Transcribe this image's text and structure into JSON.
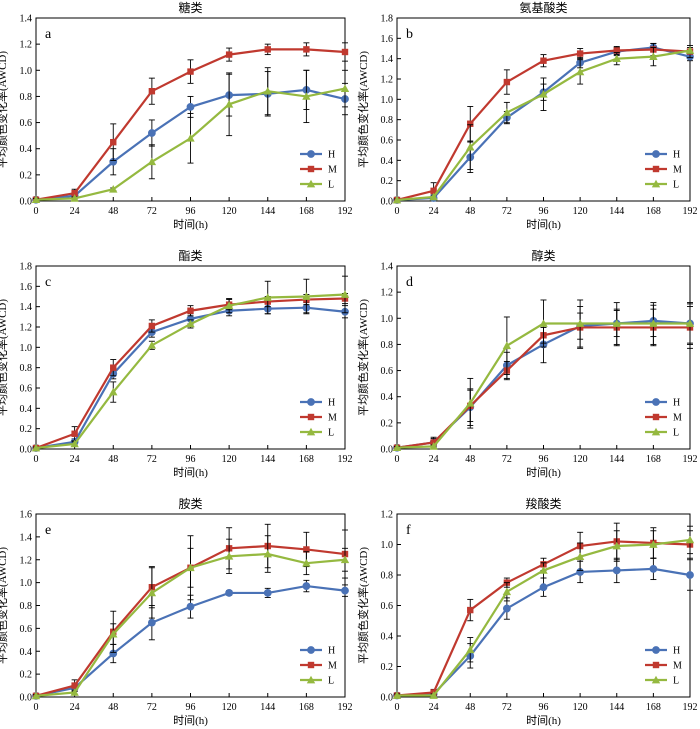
{
  "figure": {
    "colors": {
      "H": "#4a72b6",
      "M": "#c0392f",
      "L": "#95b940"
    },
    "marker_shapes": {
      "H": "circle",
      "M": "square",
      "L": "triangle"
    }
  },
  "chart_data": [
    {
      "type": "line",
      "letter": "a",
      "title": "糖类",
      "xlabel": "时间(h)",
      "ylabel": "平均颜色变化率(AWCD)",
      "xlim": [
        0,
        192
      ],
      "ylim": [
        0,
        1.4
      ],
      "xticks": [
        0,
        24,
        48,
        72,
        96,
        120,
        144,
        168,
        192
      ],
      "yticks": [
        0,
        0.2,
        0.4,
        0.6,
        0.8,
        1.0,
        1.2,
        1.4
      ],
      "ytick_labels": [
        "0.0",
        "0.2",
        "0.4",
        "0.6",
        "0.8",
        "1.0",
        "1.2",
        "1.4"
      ],
      "x": [
        0,
        24,
        48,
        72,
        96,
        120,
        144,
        168,
        192
      ],
      "legend": "right",
      "series": [
        {
          "name": "H",
          "values": [
            0.01,
            0.04,
            0.3,
            0.52,
            0.72,
            0.81,
            0.82,
            0.85,
            0.78
          ],
          "errors": [
            0.01,
            0.02,
            0.1,
            0.1,
            0.08,
            0.16,
            0.17,
            0.15,
            0.12
          ]
        },
        {
          "name": "M",
          "values": [
            0.01,
            0.06,
            0.45,
            0.84,
            0.99,
            1.12,
            1.16,
            1.16,
            1.14
          ],
          "errors": [
            0.01,
            0.03,
            0.14,
            0.1,
            0.09,
            0.05,
            0.04,
            0.05,
            0.07
          ]
        },
        {
          "name": "L",
          "values": [
            0.01,
            0.02,
            0.09,
            0.3,
            0.48,
            0.74,
            0.84,
            0.8,
            0.86
          ],
          "errors": [
            0.01,
            0.01,
            0.01,
            0.13,
            0.19,
            0.24,
            0.18,
            0.2,
            0.14
          ]
        }
      ]
    },
    {
      "type": "line",
      "letter": "b",
      "title": "氨基酸类",
      "xlabel": "时间(h)",
      "ylabel": "平均颜色变化率(AWCD)",
      "xlim": [
        0,
        192
      ],
      "ylim": [
        0,
        1.8
      ],
      "xticks": [
        0,
        24,
        48,
        72,
        96,
        120,
        144,
        168,
        192
      ],
      "yticks": [
        0,
        0.2,
        0.4,
        0.6,
        0.8,
        1.0,
        1.2,
        1.4,
        1.6,
        1.8
      ],
      "ytick_labels": [
        "0.0",
        "0.2",
        "0.4",
        "0.6",
        "0.8",
        "1.0",
        "1.2",
        "1.4",
        "1.6",
        "1.8"
      ],
      "x": [
        0,
        24,
        48,
        72,
        96,
        120,
        144,
        168,
        192
      ],
      "legend": "right",
      "series": [
        {
          "name": "H",
          "values": [
            0.01,
            0.03,
            0.43,
            0.82,
            1.07,
            1.36,
            1.47,
            1.51,
            1.42
          ],
          "errors": [
            0.01,
            0.02,
            0.15,
            0.06,
            0.08,
            0.05,
            0.04,
            0.04,
            0.04
          ]
        },
        {
          "name": "M",
          "values": [
            0.01,
            0.1,
            0.76,
            1.17,
            1.38,
            1.45,
            1.48,
            1.49,
            1.47
          ],
          "errors": [
            0.01,
            0.08,
            0.17,
            0.12,
            0.06,
            0.05,
            0.04,
            0.06,
            0.06
          ]
        },
        {
          "name": "L",
          "values": [
            0.01,
            0.04,
            0.53,
            0.87,
            1.05,
            1.27,
            1.4,
            1.42,
            1.48
          ],
          "errors": [
            0.01,
            0.02,
            0.22,
            0.1,
            0.16,
            0.12,
            0.06,
            0.09,
            0.03
          ]
        }
      ]
    },
    {
      "type": "line",
      "letter": "c",
      "title": "酯类",
      "xlabel": "时间(h)",
      "ylabel": "平均颜色变化率(AWCD)",
      "xlim": [
        0,
        192
      ],
      "ylim": [
        0,
        1.8
      ],
      "xticks": [
        0,
        24,
        48,
        72,
        96,
        120,
        144,
        168,
        192
      ],
      "yticks": [
        0,
        0.2,
        0.4,
        0.6,
        0.8,
        1.0,
        1.2,
        1.4,
        1.6,
        1.8
      ],
      "ytick_labels": [
        "0.0",
        "0.2",
        "0.4",
        "0.6",
        "0.8",
        "1.0",
        "1.2",
        "1.4",
        "1.6",
        "1.8"
      ],
      "x": [
        0,
        24,
        48,
        72,
        96,
        120,
        144,
        168,
        192
      ],
      "legend": "right",
      "series": [
        {
          "name": "H",
          "values": [
            0.01,
            0.07,
            0.74,
            1.15,
            1.28,
            1.36,
            1.38,
            1.39,
            1.35
          ],
          "errors": [
            0.01,
            0.03,
            0.05,
            0.05,
            0.05,
            0.05,
            0.05,
            0.05,
            0.06
          ]
        },
        {
          "name": "M",
          "values": [
            0.01,
            0.15,
            0.8,
            1.21,
            1.36,
            1.42,
            1.45,
            1.47,
            1.48
          ],
          "errors": [
            0.01,
            0.07,
            0.08,
            0.06,
            0.05,
            0.05,
            0.05,
            0.05,
            0.05
          ]
        },
        {
          "name": "L",
          "values": [
            0.01,
            0.05,
            0.56,
            1.02,
            1.23,
            1.41,
            1.49,
            1.5,
            1.52
          ],
          "errors": [
            0.01,
            0.02,
            0.1,
            0.04,
            0.04,
            0.07,
            0.16,
            0.17,
            0.18
          ]
        }
      ]
    },
    {
      "type": "line",
      "letter": "d",
      "title": "醇类",
      "xlabel": "时间(h)",
      "ylabel": "平均颜色变化率(AWCD)",
      "xlim": [
        0,
        192
      ],
      "ylim": [
        0,
        1.4
      ],
      "xticks": [
        0,
        24,
        48,
        72,
        96,
        120,
        144,
        168,
        192
      ],
      "yticks": [
        0,
        0.2,
        0.4,
        0.6,
        0.8,
        1.0,
        1.2,
        1.4
      ],
      "ytick_labels": [
        "0.0",
        "0.2",
        "0.4",
        "0.6",
        "0.8",
        "1.0",
        "1.2",
        "1.4"
      ],
      "x": [
        0,
        24,
        48,
        72,
        96,
        120,
        144,
        168,
        192
      ],
      "legend": "right",
      "series": [
        {
          "name": "H",
          "values": [
            0.01,
            0.05,
            0.32,
            0.64,
            0.8,
            0.94,
            0.96,
            0.98,
            0.96
          ],
          "errors": [
            0.01,
            0.03,
            0.14,
            0.1,
            0.14,
            0.1,
            0.1,
            0.12,
            0.15
          ]
        },
        {
          "name": "M",
          "values": [
            0.01,
            0.05,
            0.33,
            0.6,
            0.87,
            0.93,
            0.93,
            0.93,
            0.93
          ],
          "errors": [
            0.01,
            0.04,
            0.12,
            0.07,
            0.06,
            0.16,
            0.14,
            0.14,
            0.16
          ]
        },
        {
          "name": "L",
          "values": [
            0.01,
            0.02,
            0.35,
            0.79,
            0.96,
            0.96,
            0.96,
            0.96,
            0.96
          ],
          "errors": [
            0.01,
            0.01,
            0.19,
            0.22,
            0.18,
            0.18,
            0.16,
            0.16,
            0.16
          ]
        }
      ]
    },
    {
      "type": "line",
      "letter": "e",
      "title": "胺类",
      "xlabel": "时间(h)",
      "ylabel": "平均颜色变化率(AWCD)",
      "xlim": [
        0,
        192
      ],
      "ylim": [
        0,
        1.6
      ],
      "xticks": [
        0,
        24,
        48,
        72,
        96,
        120,
        144,
        168,
        192
      ],
      "yticks": [
        0,
        0.2,
        0.4,
        0.6,
        0.8,
        1.0,
        1.2,
        1.4,
        1.6
      ],
      "ytick_labels": [
        "0.0",
        "0.2",
        "0.4",
        "0.6",
        "0.8",
        "1.0",
        "1.2",
        "1.4",
        "1.6"
      ],
      "x": [
        0,
        24,
        48,
        72,
        96,
        120,
        144,
        168,
        192
      ],
      "legend": "right",
      "series": [
        {
          "name": "H",
          "values": [
            0.01,
            0.08,
            0.38,
            0.65,
            0.79,
            0.91,
            0.91,
            0.97,
            0.93
          ],
          "errors": [
            0.01,
            0.03,
            0.08,
            0.15,
            0.1,
            0.02,
            0.04,
            0.05,
            0.05
          ]
        },
        {
          "name": "M",
          "values": [
            0.01,
            0.1,
            0.57,
            0.96,
            1.13,
            1.3,
            1.32,
            1.29,
            1.25
          ],
          "errors": [
            0.01,
            0.05,
            0.18,
            0.18,
            0.28,
            0.18,
            0.19,
            0.15,
            0.21
          ]
        },
        {
          "name": "L",
          "values": [
            0.01,
            0.04,
            0.55,
            0.91,
            1.13,
            1.23,
            1.25,
            1.17,
            1.2
          ],
          "errors": [
            0.01,
            0.02,
            0.09,
            0.22,
            0.17,
            0.15,
            0.16,
            0.1,
            0.1
          ]
        }
      ]
    },
    {
      "type": "line",
      "letter": "f",
      "title": "羧酸类",
      "xlabel": "时间(h)",
      "ylabel": "平均颜色变化率(AWCD)",
      "xlim": [
        0,
        192
      ],
      "ylim": [
        0,
        1.2
      ],
      "xticks": [
        0,
        24,
        48,
        72,
        96,
        120,
        144,
        168,
        192
      ],
      "yticks": [
        0,
        0.2,
        0.4,
        0.6,
        0.8,
        1.0,
        1.2
      ],
      "ytick_labels": [
        "0.0",
        "0.2",
        "0.4",
        "0.6",
        "0.8",
        "1.0",
        "1.2"
      ],
      "x": [
        0,
        24,
        48,
        72,
        96,
        120,
        144,
        168,
        192
      ],
      "legend": "right",
      "series": [
        {
          "name": "H",
          "values": [
            0.01,
            0.02,
            0.27,
            0.58,
            0.72,
            0.82,
            0.83,
            0.84,
            0.8
          ],
          "errors": [
            0.01,
            0.01,
            0.08,
            0.07,
            0.06,
            0.07,
            0.08,
            0.07,
            0.1
          ]
        },
        {
          "name": "M",
          "values": [
            0.01,
            0.03,
            0.57,
            0.75,
            0.87,
            0.99,
            1.02,
            1.01,
            1.0
          ],
          "errors": [
            0.01,
            0.02,
            0.07,
            0.03,
            0.04,
            0.09,
            0.12,
            0.1,
            0.09
          ]
        },
        {
          "name": "L",
          "values": [
            0.01,
            0.01,
            0.31,
            0.69,
            0.83,
            0.92,
            0.99,
            1.0,
            1.03
          ],
          "errors": [
            0.01,
            0.01,
            0.08,
            0.06,
            0.05,
            0.09,
            0.1,
            0.09,
            0.09
          ]
        }
      ]
    }
  ]
}
